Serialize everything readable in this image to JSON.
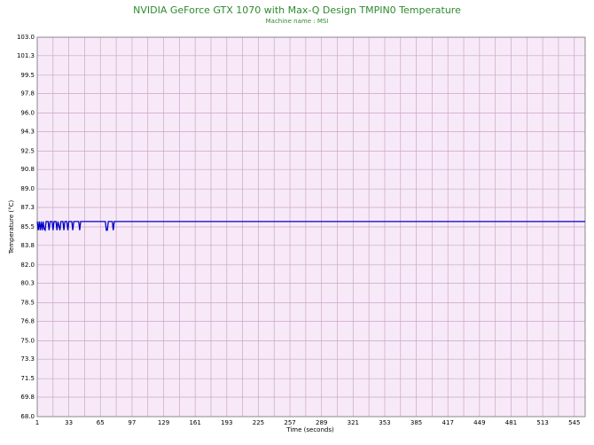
{
  "chart_data": {
    "type": "line",
    "title": "NVIDIA GeForce GTX 1070 with Max-Q Design TMPIN0 Temperature",
    "subtitle": "Machine name : MSI",
    "x_label": "Time (seconds)",
    "y_label": "Temperature (°C)",
    "xlim": [
      1,
      556
    ],
    "xticks": [
      1,
      33,
      65,
      97,
      129,
      161,
      193,
      225,
      257,
      289,
      321,
      353,
      385,
      417,
      449,
      481,
      513,
      545
    ],
    "ylim": [
      68,
      103
    ],
    "yticks": [
      {
        "value": 103,
        "label": "103.0"
      },
      101.3,
      99.5,
      97.8,
      {
        "value": 96,
        "label": "96.0"
      },
      94.3,
      92.5,
      90.8,
      {
        "value": 89,
        "label": "89.0"
      },
      87.3,
      85.5,
      83.8,
      {
        "value": 82,
        "label": "82.0"
      },
      80.3,
      78.5,
      76.8,
      {
        "value": 75,
        "label": "75.0"
      },
      73.3,
      71.5,
      69.8,
      {
        "value": 68,
        "label": "68.0"
      }
    ],
    "grid": true,
    "series": [
      {
        "color": "#0000c8",
        "x": [
          1,
          2,
          3,
          4,
          5,
          6,
          7,
          8,
          9,
          10,
          12,
          13,
          14,
          16,
          17,
          18,
          20,
          21,
          22,
          24,
          25,
          27,
          28,
          29,
          31,
          32,
          33,
          36,
          37,
          38,
          43,
          44,
          45,
          70,
          71,
          72,
          73,
          77,
          78,
          79,
          556
        ],
        "values": [
          86.0,
          85.2,
          86.0,
          85.2,
          86.0,
          85.2,
          86.0,
          85.3,
          85.2,
          86.0,
          86.0,
          85.2,
          86.0,
          86.0,
          85.2,
          86.0,
          86.0,
          85.2,
          86.0,
          85.2,
          86.0,
          86.0,
          85.2,
          86.0,
          86.0,
          85.2,
          86.0,
          86.0,
          85.2,
          86.0,
          86.0,
          85.2,
          86.0,
          86.0,
          85.2,
          85.2,
          86.0,
          86.0,
          85.2,
          86.0,
          86.0
        ]
      }
    ]
  }
}
